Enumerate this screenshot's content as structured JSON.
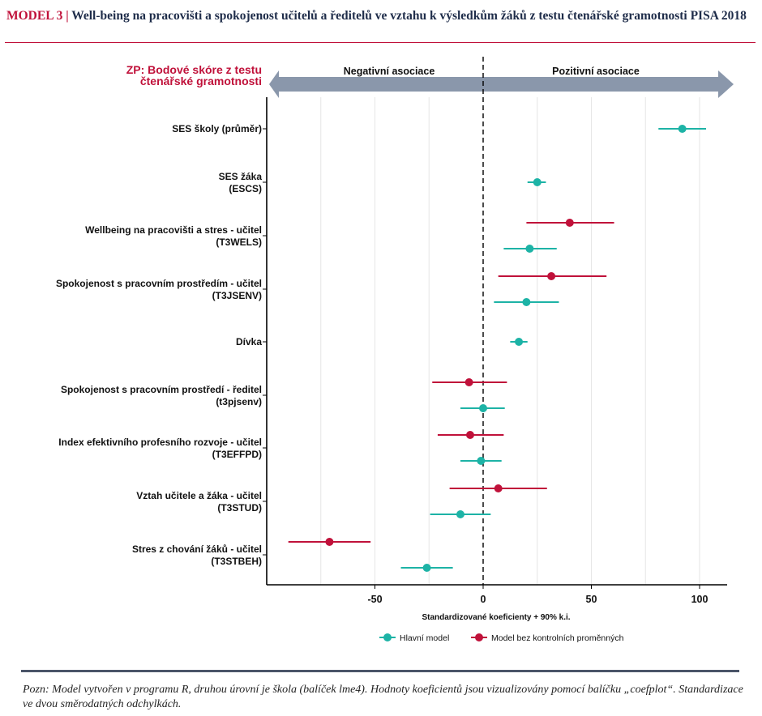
{
  "header": {
    "lead": "MODEL 3",
    "separator": " | ",
    "title": "Well-being na pracovišti a spokojenost učitelů a ředitelů ve vztahu k výsledkům žáků z testu čtenářské gramotnosti PISA 2018"
  },
  "note": "Pozn: Model vytvořen v programu R, druhou úrovní je škola (balíček lme4). Hodnoty koeficientů jsou vizualizovány pomocí balíčku „coefplot“. Standardizace ve dvou směrodatných odchylkách.",
  "colors": {
    "main": "#1db3a6",
    "nocontrol": "#c0113a",
    "arrow": "#8a97ab",
    "ylabel": "#c0113a"
  },
  "chart_data": {
    "type": "scatter",
    "subtype": "coefficient-plot",
    "ylabel_lines": [
      "ZP: Bodové skóre z testu",
      "čtenářské gramotnosti"
    ],
    "xlabel": "Standardizované koeficienty + 90% k.i.",
    "arrow_left_label": "Negativní asociace",
    "arrow_right_label": "Pozitivní asociace",
    "xlim": [
      -100,
      113
    ],
    "x_ticks": [
      -50,
      0,
      50,
      100
    ],
    "x_tick_labels": [
      "-50",
      "0",
      "50",
      "100"
    ],
    "grid": true,
    "reference_line": 0,
    "legend_position": "bottom",
    "categories": [
      {
        "lines": [
          "SES školy (průměr)"
        ]
      },
      {
        "lines": [
          "SES žáka",
          "(ESCS)"
        ]
      },
      {
        "lines": [
          "Wellbeing na pracovišti a stres - učitel",
          "(T3WELS)"
        ]
      },
      {
        "lines": [
          "Spokojenost s pracovním prostředím - učitel",
          "(T3JSENV)"
        ]
      },
      {
        "lines": [
          "Dívka"
        ]
      },
      {
        "lines": [
          "Spokojenost s pracovním prostředí - ředitel",
          "(t3pjsenv)"
        ]
      },
      {
        "lines": [
          "Index efektivního profesního rozvoje - učitel",
          "(T3EFFPD)"
        ]
      },
      {
        "lines": [
          "Vztah učitele a žáka - učitel",
          "(T3STUD)"
        ]
      },
      {
        "lines": [
          "Stres z chování žáků - učitel",
          "(T3STBEH)"
        ]
      }
    ],
    "series": [
      {
        "name": "Hlavní model",
        "color": "#1db3a6",
        "points": [
          {
            "category": 0,
            "estimate": 92,
            "low": 81,
            "high": 103
          },
          {
            "category": 1,
            "estimate": 25,
            "low": 20.5,
            "high": 29
          },
          {
            "category": 2,
            "estimate": 21.5,
            "low": 9.5,
            "high": 34
          },
          {
            "category": 3,
            "estimate": 20,
            "low": 5,
            "high": 35
          },
          {
            "category": 4,
            "estimate": 16.5,
            "low": 12.5,
            "high": 20.5
          },
          {
            "category": 5,
            "estimate": 0,
            "low": -10.5,
            "high": 10
          },
          {
            "category": 6,
            "estimate": -1,
            "low": -10.5,
            "high": 8.5
          },
          {
            "category": 7,
            "estimate": -10.5,
            "low": -24.5,
            "high": 3.5
          },
          {
            "category": 8,
            "estimate": -26,
            "low": -38,
            "high": -14
          }
        ]
      },
      {
        "name": "Model bez kontrolních proměnných",
        "color": "#c0113a",
        "points": [
          {
            "category": 2,
            "estimate": 40,
            "low": 20,
            "high": 60.5
          },
          {
            "category": 3,
            "estimate": 31.5,
            "low": 7,
            "high": 57
          },
          {
            "category": 5,
            "estimate": -6.5,
            "low": -23.5,
            "high": 11
          },
          {
            "category": 6,
            "estimate": -6,
            "low": -21,
            "high": 9.5
          },
          {
            "category": 7,
            "estimate": 7,
            "low": -15.5,
            "high": 29.5
          },
          {
            "category": 8,
            "estimate": -71,
            "low": -90,
            "high": -52
          }
        ]
      }
    ]
  }
}
